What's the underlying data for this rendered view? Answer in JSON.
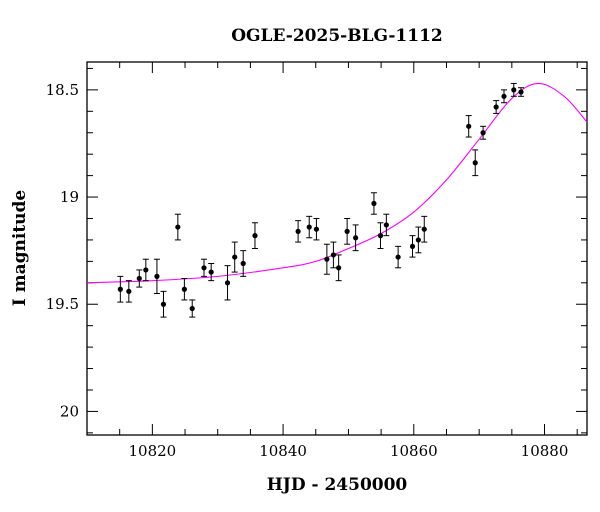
{
  "chart_data": {
    "type": "scatter",
    "title": "OGLE-2025-BLG-1112",
    "xlabel": "HJD - 2450000",
    "ylabel": "I magnitude",
    "xlim": [
      10810,
      10886.5
    ],
    "ylim": [
      20.11,
      18.37
    ],
    "y_inverted": true,
    "x_ticks_major": [
      10820,
      10840,
      10860,
      10880
    ],
    "x_tick_labels": [
      "10820",
      "10840",
      "10860",
      "10880"
    ],
    "y_ticks_major": [
      18.5,
      19,
      19.5,
      20
    ],
    "y_tick_labels": [
      "18.5",
      "19",
      "19.5",
      "20"
    ],
    "grid": false,
    "colors": {
      "data": "#000000",
      "errorbar": "#000000",
      "model": "#ff00ff"
    },
    "series": [
      {
        "kind": "points_with_errorbars",
        "points": [
          {
            "x": 10815.1,
            "y": 19.43,
            "err": 0.06
          },
          {
            "x": 10816.4,
            "y": 19.44,
            "err": 0.05
          },
          {
            "x": 10818.0,
            "y": 19.38,
            "err": 0.04
          },
          {
            "x": 10819.0,
            "y": 19.34,
            "err": 0.05
          },
          {
            "x": 10820.7,
            "y": 19.37,
            "err": 0.08
          },
          {
            "x": 10821.7,
            "y": 19.5,
            "err": 0.06
          },
          {
            "x": 10823.9,
            "y": 19.14,
            "err": 0.06
          },
          {
            "x": 10824.9,
            "y": 19.43,
            "err": 0.05
          },
          {
            "x": 10826.1,
            "y": 19.52,
            "err": 0.04
          },
          {
            "x": 10827.9,
            "y": 19.33,
            "err": 0.04
          },
          {
            "x": 10829.0,
            "y": 19.35,
            "err": 0.04
          },
          {
            "x": 10831.5,
            "y": 19.4,
            "err": 0.08
          },
          {
            "x": 10832.6,
            "y": 19.28,
            "err": 0.07
          },
          {
            "x": 10833.9,
            "y": 19.31,
            "err": 0.06
          },
          {
            "x": 10835.7,
            "y": 19.18,
            "err": 0.06
          },
          {
            "x": 10842.3,
            "y": 19.16,
            "err": 0.05
          },
          {
            "x": 10844.0,
            "y": 19.14,
            "err": 0.05
          },
          {
            "x": 10845.1,
            "y": 19.15,
            "err": 0.05
          },
          {
            "x": 10846.7,
            "y": 19.29,
            "err": 0.07
          },
          {
            "x": 10847.7,
            "y": 19.27,
            "err": 0.06
          },
          {
            "x": 10848.5,
            "y": 19.33,
            "err": 0.06
          },
          {
            "x": 10849.8,
            "y": 19.16,
            "err": 0.06
          },
          {
            "x": 10851.1,
            "y": 19.19,
            "err": 0.06
          },
          {
            "x": 10853.9,
            "y": 19.03,
            "err": 0.05
          },
          {
            "x": 10854.9,
            "y": 19.18,
            "err": 0.06
          },
          {
            "x": 10855.8,
            "y": 19.13,
            "err": 0.05
          },
          {
            "x": 10857.6,
            "y": 19.28,
            "err": 0.05
          },
          {
            "x": 10859.8,
            "y": 19.23,
            "err": 0.05
          },
          {
            "x": 10860.7,
            "y": 19.2,
            "err": 0.06
          },
          {
            "x": 10861.6,
            "y": 19.15,
            "err": 0.06
          },
          {
            "x": 10868.4,
            "y": 18.67,
            "err": 0.05
          },
          {
            "x": 10869.4,
            "y": 18.84,
            "err": 0.06
          },
          {
            "x": 10870.6,
            "y": 18.7,
            "err": 0.03
          },
          {
            "x": 10872.6,
            "y": 18.58,
            "err": 0.03
          },
          {
            "x": 10873.8,
            "y": 18.53,
            "err": 0.03
          },
          {
            "x": 10875.3,
            "y": 18.5,
            "err": 0.03
          },
          {
            "x": 10876.4,
            "y": 18.51,
            "err": 0.02
          }
        ]
      },
      {
        "kind": "model_curve",
        "points": [
          [
            10810,
            19.4
          ],
          [
            10820,
            19.39
          ],
          [
            10830,
            19.37
          ],
          [
            10840,
            19.33
          ],
          [
            10845,
            19.3
          ],
          [
            10850,
            19.24
          ],
          [
            10855,
            19.17
          ],
          [
            10860,
            19.07
          ],
          [
            10865,
            18.92
          ],
          [
            10870,
            18.73
          ],
          [
            10875,
            18.54
          ],
          [
            10879,
            18.47
          ],
          [
            10883,
            18.53
          ],
          [
            10886.5,
            18.65
          ]
        ]
      }
    ]
  }
}
